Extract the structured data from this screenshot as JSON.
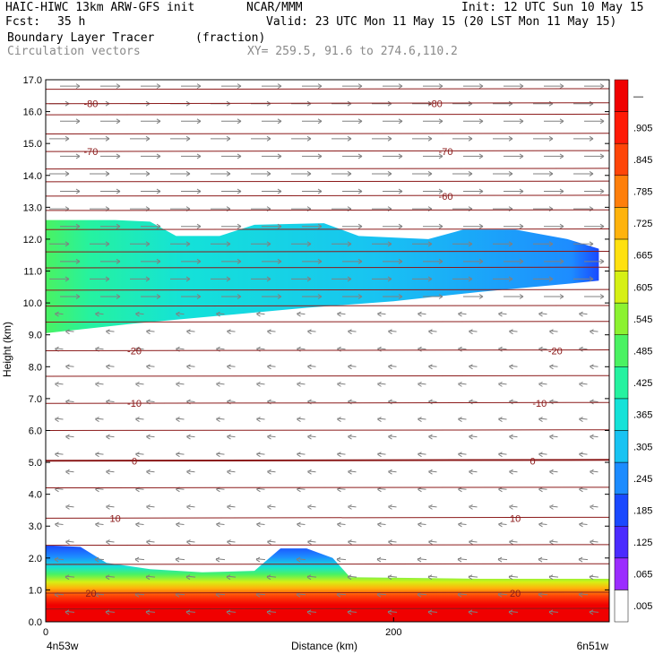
{
  "header": {
    "line1_left": "HAIC-HIWC 13km ARW-GFS init",
    "line1_mid": "NCAR/MMM",
    "line1_right": "Init: 12 UTC Sun 10 May 15",
    "fcst_label": "Fcst:",
    "fcst_value": "35 h",
    "valid": "Valid: 23 UTC Mon 11 May 15 (20 LST Mon 11 May 15)",
    "field": "Boundary Layer Tracer",
    "field_units": "(fraction)",
    "vectors": "Circulation vectors",
    "xy": "XY= 259.5, 91.6 to 274.6,110.2"
  },
  "colors": {
    "contour": "#8b1a1a",
    "vector": "#808080",
    "scale": [
      "#ffffff",
      "#9b2cff",
      "#4b2bff",
      "#1a49ff",
      "#1d8cff",
      "#18c3f2",
      "#14e2d8",
      "#25f2a0",
      "#4af262",
      "#8cf231",
      "#d6f014",
      "#ffe10f",
      "#ffb30c",
      "#ff7f0a",
      "#ff4508",
      "#ff1a06",
      "#f00000"
    ]
  },
  "chart_data": {
    "type": "heatmap",
    "title": "Boundary Layer Tracer",
    "units": "(fraction)",
    "xlabel": "Distance (km)",
    "ylabel": "Height (km)",
    "xlim": [
      0,
      324
    ],
    "ylim": [
      0,
      17
    ],
    "x_ticks": [
      0,
      200
    ],
    "x_endpoints": [
      "4n53w",
      "6n51w"
    ],
    "y_ticks": [
      "0.0",
      "1.0",
      "2.0",
      "3.0",
      "4.0",
      "5.0",
      "6.0",
      "7.0",
      "8.0",
      "9.0",
      "10.0",
      "11.0",
      "12.0",
      "13.0",
      "14.0",
      "15.0",
      "16.0",
      "17.0"
    ],
    "colorbar_labels": [
      ".005",
      ".065",
      ".125",
      ".185",
      ".245",
      ".305",
      ".365",
      ".425",
      ".485",
      ".545",
      ".605",
      ".665",
      ".725",
      ".785",
      ".845",
      ".905",
      "—"
    ],
    "upper_layer": {
      "bottom": [
        [
          0,
          9.05
        ],
        [
          50,
          9.35
        ],
        [
          100,
          9.6
        ],
        [
          150,
          9.85
        ],
        [
          200,
          10.05
        ],
        [
          250,
          10.35
        ],
        [
          300,
          10.6
        ],
        [
          318,
          10.7
        ]
      ],
      "top": [
        [
          0,
          12.6
        ],
        [
          40,
          12.6
        ],
        [
          60,
          12.55
        ],
        [
          75,
          12.1
        ],
        [
          100,
          12.1
        ],
        [
          120,
          12.45
        ],
        [
          160,
          12.5
        ],
        [
          180,
          12.1
        ],
        [
          220,
          12.0
        ],
        [
          240,
          12.3
        ],
        [
          270,
          12.3
        ],
        [
          300,
          12.0
        ],
        [
          318,
          11.7
        ]
      ],
      "peak": 0.45
    },
    "lower_layer": {
      "top": [
        [
          0,
          2.4
        ],
        [
          20,
          2.35
        ],
        [
          35,
          1.85
        ],
        [
          60,
          1.65
        ],
        [
          90,
          1.55
        ],
        [
          120,
          1.6
        ],
        [
          135,
          2.3
        ],
        [
          150,
          2.3
        ],
        [
          165,
          2.0
        ],
        [
          175,
          1.4
        ],
        [
          250,
          1.35
        ],
        [
          324,
          1.35
        ]
      ],
      "peak": 1.0
    },
    "contours": [
      {
        "label": "-80",
        "y": 16.25,
        "label_x": [
          26,
          224
        ]
      },
      {
        "label": "-70",
        "y": 14.75,
        "label_x": [
          26,
          230
        ]
      },
      {
        "label": "-60",
        "y": 13.35,
        "label_x": [
          230
        ]
      },
      {
        "label": "-20",
        "y": 8.5,
        "label_x": [
          51,
          293
        ]
      },
      {
        "label": "-10",
        "y": 6.85,
        "label_x": [
          51,
          284
        ]
      },
      {
        "label": "0",
        "y": 5.05,
        "label_x": [
          51,
          280
        ]
      },
      {
        "label": "10",
        "y": 3.25,
        "label_x": [
          40,
          270
        ]
      },
      {
        "label": "20",
        "y": 0.9,
        "label_x": [
          26,
          270
        ]
      }
    ]
  }
}
